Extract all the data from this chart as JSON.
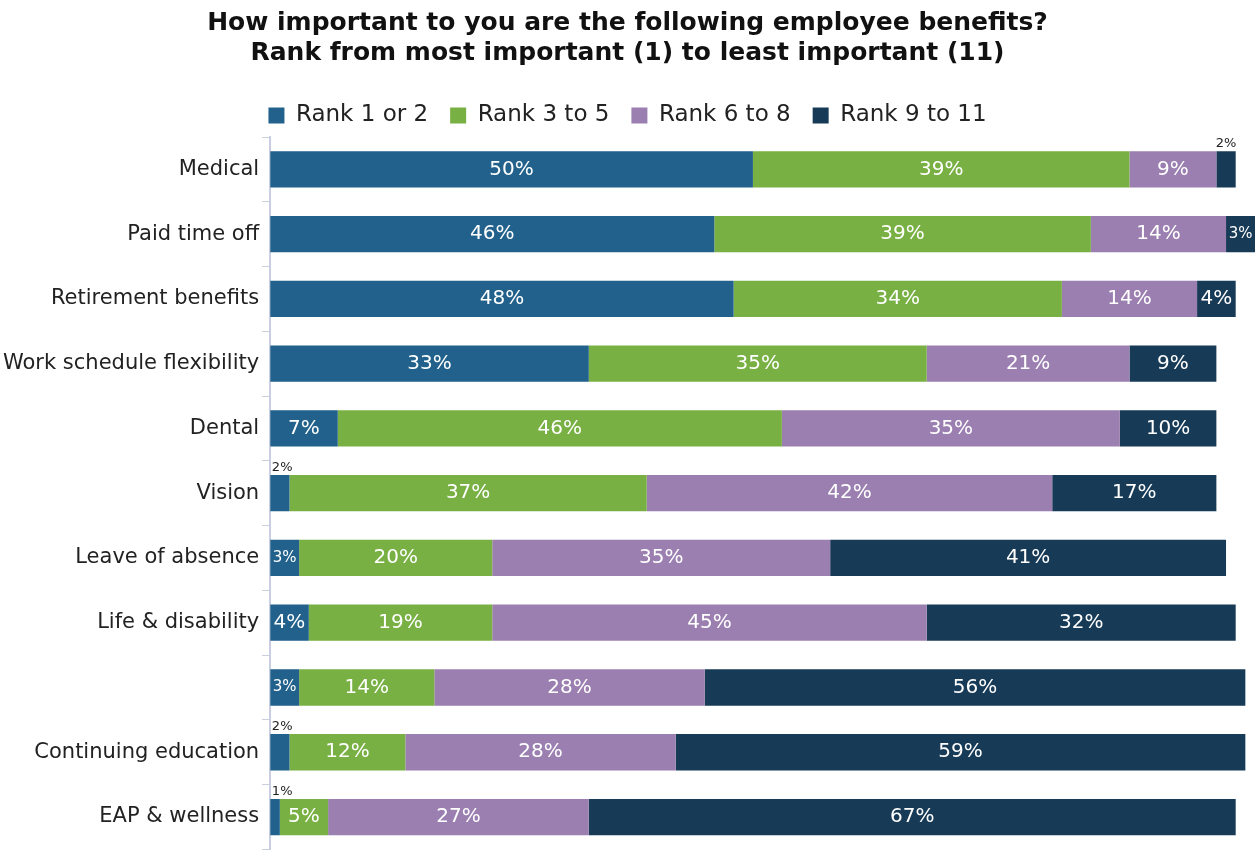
{
  "chart_data": {
    "type": "bar",
    "orientation": "horizontal",
    "stacked": true,
    "title": "How important to you are the following employee benefits?\nRank from most important (1) to least important (11)",
    "legend": "top",
    "tick_labels": "y",
    "categories": [
      "Medical",
      "Paid time off",
      "Retirement benefits",
      "Work schedule flexibility",
      "Dental",
      "Vision",
      "Leave of absence",
      "Life & disability",
      null,
      "Continuing education",
      "EAP & wellness"
    ],
    "series": [
      {
        "name": "Rank 1 or 2",
        "color": "#21618c",
        "values": [
          50,
          46,
          48,
          33,
          7,
          2,
          3,
          4,
          3,
          2,
          1
        ],
        "value_labels": [
          "50%",
          "46%",
          "48%",
          "33%",
          "7%",
          "2%",
          "3%",
          "4%",
          "3%",
          "2%",
          "1%"
        ]
      },
      {
        "name": "Rank 3 to 5",
        "color": "#78b043",
        "values": [
          39,
          39,
          34,
          35,
          46,
          37,
          20,
          19,
          14,
          12,
          5
        ],
        "value_labels": [
          "39%",
          "39%",
          "34%",
          "35%",
          "46%",
          "37%",
          "20%",
          "19%",
          "14%",
          "12%",
          "5%"
        ]
      },
      {
        "name": "Rank 6 to 8",
        "color": "#9b7fb0",
        "values": [
          9,
          14,
          14,
          21,
          35,
          42,
          35,
          45,
          28,
          28,
          27
        ],
        "value_labels": [
          "9%",
          "14%",
          "14%",
          "21%",
          "35%",
          "42%",
          "35%",
          "45%",
          "28%",
          "28%",
          "27%"
        ]
      },
      {
        "name": "Rank 9 to 11",
        "color": "#173a56",
        "values": [
          2,
          3,
          4,
          9,
          10,
          17,
          41,
          32,
          56,
          59,
          67
        ],
        "value_labels": [
          "2%",
          "3%",
          "4%",
          "9%",
          "10%",
          "17%",
          "41%",
          "32%",
          "56%",
          "59%",
          "67%"
        ]
      }
    ]
  }
}
